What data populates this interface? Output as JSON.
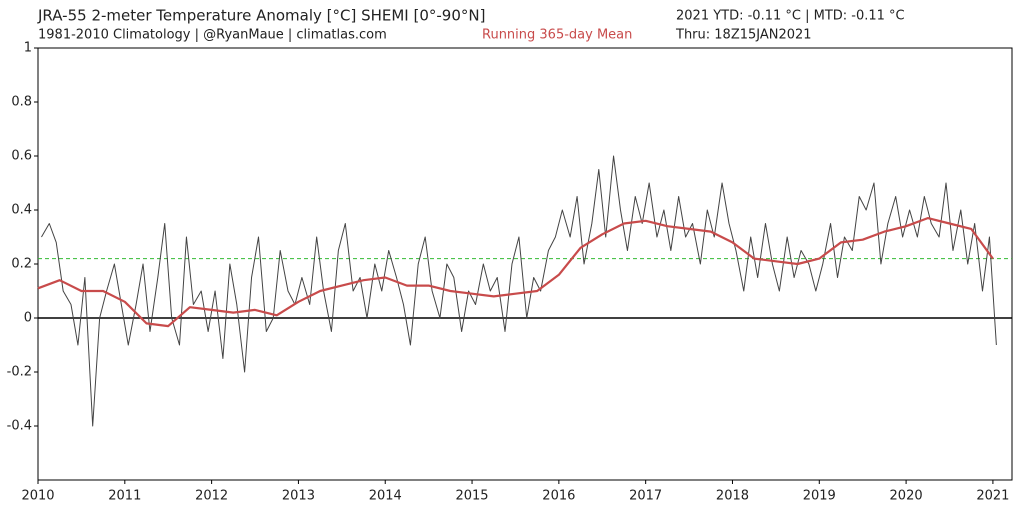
{
  "chart_data": {
    "type": "line",
    "title": "JRA-55 2-meter Temperature Anomaly [°C] SHEMI [0°-90°N]",
    "subtitle": "1981-2010 Climatology | @RyanMaue | climatlas.com",
    "stats": "2021 YTD: -0.11 °C | MTD: -0.11 °C",
    "thru": "Thru: 18Z15JAN2021",
    "xlim": [
      2010,
      2021.22
    ],
    "xticks": [
      2010,
      2011,
      2012,
      2013,
      2014,
      2015,
      2016,
      2017,
      2018,
      2019,
      2020,
      2021
    ],
    "ylim": [
      -0.6,
      1
    ],
    "yticks": [
      -0.4,
      -0.2,
      0,
      0.2,
      0.4,
      0.6,
      0.8,
      1
    ],
    "hlines": [
      {
        "value": 0,
        "color": "#000000",
        "style": "solid"
      },
      {
        "value": 0.22,
        "color": "#33bb33",
        "style": "dashed"
      }
    ],
    "series": [
      {
        "color": "#444444",
        "width": 1,
        "x": [
          2010.04,
          2010.13,
          2010.21,
          2010.29,
          2010.38,
          2010.46,
          2010.54,
          2010.63,
          2010.71,
          2010.79,
          2010.88,
          2010.96,
          2011.04,
          2011.13,
          2011.21,
          2011.29,
          2011.38,
          2011.46,
          2011.54,
          2011.63,
          2011.71,
          2011.79,
          2011.88,
          2011.96,
          2012.04,
          2012.13,
          2012.21,
          2012.29,
          2012.38,
          2012.46,
          2012.54,
          2012.63,
          2012.71,
          2012.79,
          2012.88,
          2012.96,
          2013.04,
          2013.13,
          2013.21,
          2013.29,
          2013.38,
          2013.46,
          2013.54,
          2013.63,
          2013.71,
          2013.79,
          2013.88,
          2013.96,
          2014.04,
          2014.13,
          2014.21,
          2014.29,
          2014.38,
          2014.46,
          2014.54,
          2014.63,
          2014.71,
          2014.79,
          2014.88,
          2014.96,
          2015.04,
          2015.13,
          2015.21,
          2015.29,
          2015.38,
          2015.46,
          2015.54,
          2015.63,
          2015.71,
          2015.79,
          2015.88,
          2015.96,
          2016.04,
          2016.13,
          2016.21,
          2016.29,
          2016.38,
          2016.46,
          2016.54,
          2016.63,
          2016.71,
          2016.79,
          2016.88,
          2016.96,
          2017.04,
          2017.13,
          2017.21,
          2017.29,
          2017.38,
          2017.46,
          2017.54,
          2017.63,
          2017.71,
          2017.79,
          2017.88,
          2017.96,
          2018.04,
          2018.13,
          2018.21,
          2018.29,
          2018.38,
          2018.46,
          2018.54,
          2018.63,
          2018.71,
          2018.79,
          2018.88,
          2018.96,
          2019.04,
          2019.13,
          2019.21,
          2019.29,
          2019.38,
          2019.46,
          2019.54,
          2019.63,
          2019.71,
          2019.79,
          2019.88,
          2019.96,
          2020.04,
          2020.13,
          2020.21,
          2020.29,
          2020.38,
          2020.46,
          2020.54,
          2020.63,
          2020.71,
          2020.79,
          2020.88,
          2020.96,
          2021.04
        ],
        "values": [
          0.3,
          0.35,
          0.28,
          0.1,
          0.05,
          -0.1,
          0.15,
          -0.4,
          0.0,
          0.1,
          0.2,
          0.05,
          -0.1,
          0.05,
          0.2,
          -0.05,
          0.15,
          0.35,
          0.0,
          -0.1,
          0.3,
          0.05,
          0.1,
          -0.05,
          0.1,
          -0.15,
          0.2,
          0.05,
          -0.2,
          0.15,
          0.3,
          -0.05,
          0.0,
          0.25,
          0.1,
          0.05,
          0.15,
          0.05,
          0.3,
          0.1,
          -0.05,
          0.25,
          0.35,
          0.1,
          0.15,
          0.0,
          0.2,
          0.1,
          0.25,
          0.15,
          0.05,
          -0.1,
          0.2,
          0.3,
          0.1,
          0.0,
          0.2,
          0.15,
          -0.05,
          0.1,
          0.05,
          0.2,
          0.1,
          0.15,
          -0.05,
          0.2,
          0.3,
          0.0,
          0.15,
          0.1,
          0.25,
          0.3,
          0.4,
          0.3,
          0.45,
          0.2,
          0.35,
          0.55,
          0.3,
          0.6,
          0.4,
          0.25,
          0.45,
          0.35,
          0.5,
          0.3,
          0.4,
          0.25,
          0.45,
          0.3,
          0.35,
          0.2,
          0.4,
          0.3,
          0.5,
          0.35,
          0.25,
          0.1,
          0.3,
          0.15,
          0.35,
          0.2,
          0.1,
          0.3,
          0.15,
          0.25,
          0.2,
          0.1,
          0.2,
          0.35,
          0.15,
          0.3,
          0.25,
          0.45,
          0.4,
          0.5,
          0.2,
          0.35,
          0.45,
          0.3,
          0.4,
          0.3,
          0.45,
          0.35,
          0.3,
          0.5,
          0.25,
          0.4,
          0.2,
          0.35,
          0.1,
          0.3,
          -0.1
        ]
      },
      {
        "name": "Running 365-day Mean",
        "color": "#c84b4b",
        "width": 2.2,
        "x": [
          2010.0,
          2010.25,
          2010.5,
          2010.75,
          2011.0,
          2011.25,
          2011.5,
          2011.75,
          2012.0,
          2012.25,
          2012.5,
          2012.75,
          2013.0,
          2013.25,
          2013.5,
          2013.75,
          2014.0,
          2014.25,
          2014.5,
          2014.75,
          2015.0,
          2015.25,
          2015.5,
          2015.75,
          2016.0,
          2016.25,
          2016.5,
          2016.75,
          2017.0,
          2017.25,
          2017.5,
          2017.75,
          2018.0,
          2018.25,
          2018.5,
          2018.75,
          2019.0,
          2019.25,
          2019.5,
          2019.75,
          2020.0,
          2020.25,
          2020.5,
          2020.75,
          2021.0
        ],
        "values": [
          0.11,
          0.14,
          0.1,
          0.1,
          0.06,
          -0.02,
          -0.03,
          0.04,
          0.03,
          0.02,
          0.03,
          0.01,
          0.06,
          0.1,
          0.12,
          0.14,
          0.15,
          0.12,
          0.12,
          0.1,
          0.09,
          0.08,
          0.09,
          0.1,
          0.16,
          0.26,
          0.31,
          0.35,
          0.36,
          0.34,
          0.33,
          0.32,
          0.28,
          0.22,
          0.21,
          0.2,
          0.22,
          0.28,
          0.29,
          0.32,
          0.34,
          0.37,
          0.35,
          0.33,
          0.22
        ]
      }
    ]
  }
}
